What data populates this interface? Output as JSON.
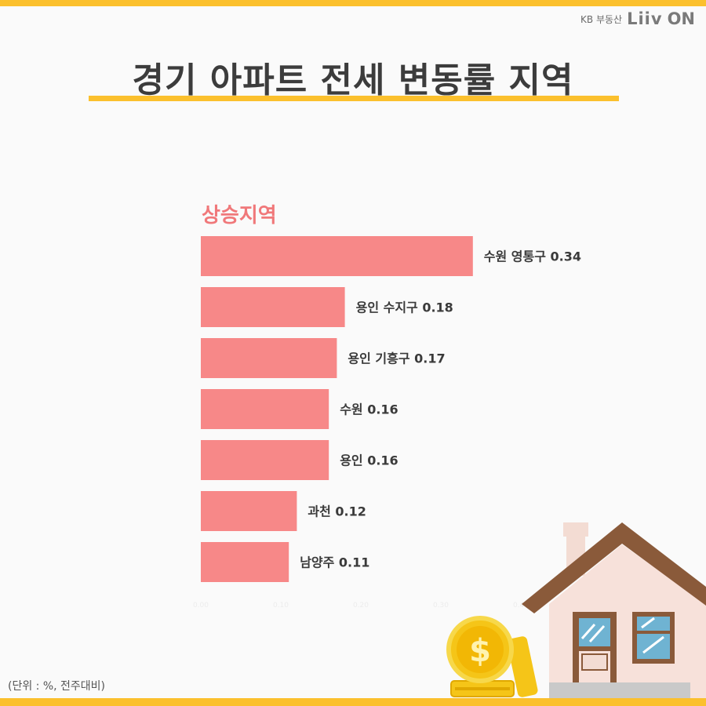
{
  "brand": {
    "kb": "KB 부동산",
    "liiv": "Liiv",
    "on": "ON"
  },
  "title": "경기 아파트 전세 변동률 지역",
  "note": "(단위 : %, 전주대비)",
  "colors": {
    "bar": "#f78888",
    "accent": "#fbc02d",
    "section": "#f0787a"
  },
  "chart_data": {
    "type": "bar",
    "orientation": "horizontal",
    "subtitle": "상승지역",
    "categories": [
      "수원 영통구",
      "용인 수지구",
      "용인 기흥구",
      "수원",
      "용인",
      "과천",
      "남양주"
    ],
    "values": [
      0.34,
      0.18,
      0.17,
      0.16,
      0.16,
      0.12,
      0.11
    ],
    "value_labels": [
      "수원 영통구 0.34",
      "용인 수지구 0.18",
      "용인 기흥구 0.17",
      "수원 0.16",
      "용인 0.16",
      "과천 0.12",
      "남양주 0.11"
    ],
    "xlim": [
      0,
      0.4
    ],
    "xticks": [
      "0.00",
      "0.10",
      "0.20",
      "0.30",
      "0.40"
    ],
    "grid": false,
    "legend": "none"
  }
}
